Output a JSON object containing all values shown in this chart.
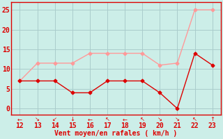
{
  "x": [
    12,
    13,
    14,
    15,
    16,
    17,
    18,
    19,
    20,
    21,
    22,
    23
  ],
  "y_mean": [
    7,
    7,
    7,
    4,
    4,
    7,
    7,
    7,
    4,
    0,
    14,
    11
  ],
  "y_gust": [
    7,
    11.5,
    11.5,
    11.5,
    14,
    14,
    14,
    14,
    11,
    11.5,
    25,
    25
  ],
  "line_color_mean": "#dd0000",
  "line_color_gust": "#ff9999",
  "bg_color": "#cceee8",
  "grid_color": "#aacccc",
  "axis_color": "#dd0000",
  "xlabel": "Vent moyen/en rafales ( km/h )",
  "xlabel_fontsize": 7,
  "tick_fontsize": 7,
  "xlim": [
    11.5,
    23.5
  ],
  "ylim": [
    -1.5,
    27
  ],
  "yticks": [
    0,
    5,
    10,
    15,
    20,
    25
  ],
  "xticks": [
    12,
    13,
    14,
    15,
    16,
    17,
    18,
    19,
    20,
    21,
    22,
    23
  ],
  "arrows": [
    "←",
    "↘",
    "↙",
    "↓",
    "←",
    "↖",
    "←",
    "↖",
    "↘",
    "↘",
    "↖",
    "↑"
  ]
}
